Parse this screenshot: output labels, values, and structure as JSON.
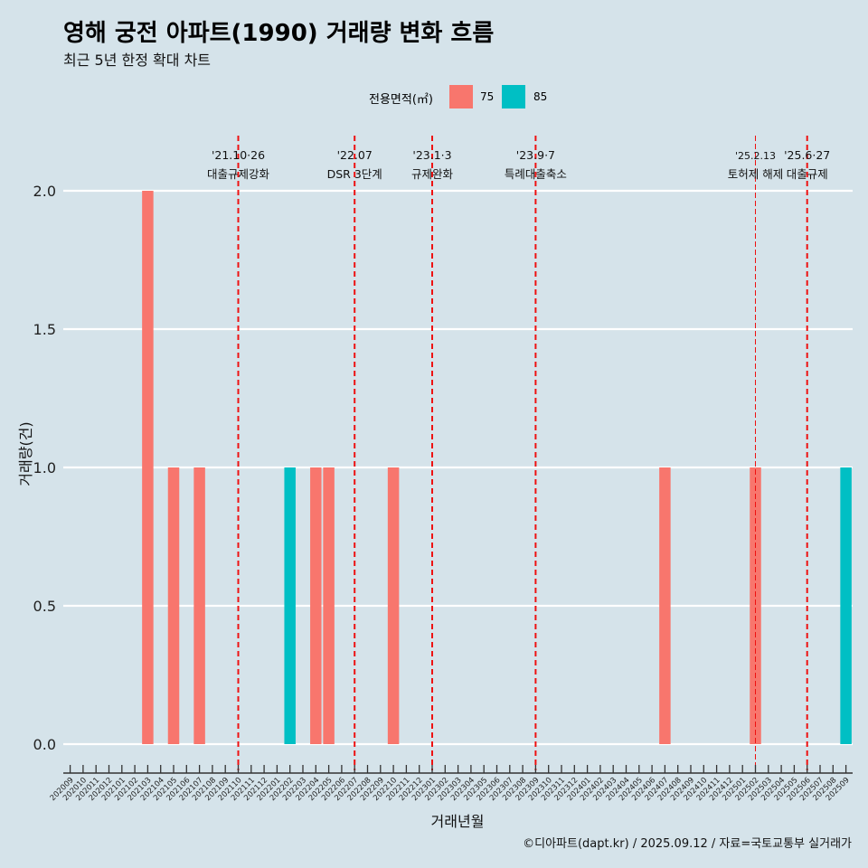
{
  "header": {
    "title": "영해 궁전 아파트(1990) 거래량 변화 흐름",
    "subtitle": "최근 5년 한정 확대 차트"
  },
  "legend": {
    "title": "전용면적(㎡)",
    "items": [
      {
        "label": "75",
        "color": "#f8766d"
      },
      {
        "label": "85",
        "color": "#00bfc4"
      }
    ]
  },
  "caption": "©디아파트(dapt.kr) / 2025.09.12 / 자료=국토교통부 실거래가",
  "chart_data": {
    "type": "bar",
    "xlabel": "거래년월",
    "ylabel": "거래량(건)",
    "ylim": [
      0,
      2
    ],
    "yticks": [
      "0.0",
      "0.5",
      "1.0",
      "1.5",
      "2.0"
    ],
    "categories": [
      "202009",
      "202010",
      "202011",
      "202012",
      "202101",
      "202102",
      "202103",
      "202104",
      "202105",
      "202106",
      "202107",
      "202108",
      "202109",
      "202110",
      "202111",
      "202112",
      "202201",
      "202202",
      "202203",
      "202204",
      "202205",
      "202206",
      "202207",
      "202208",
      "202209",
      "202210",
      "202211",
      "202212",
      "202301",
      "202302",
      "202303",
      "202304",
      "202305",
      "202306",
      "202307",
      "202308",
      "202309",
      "202310",
      "202311",
      "202312",
      "202401",
      "202402",
      "202403",
      "202404",
      "202405",
      "202406",
      "202407",
      "202408",
      "202409",
      "202410",
      "202411",
      "202412",
      "202501",
      "202502",
      "202503",
      "202504",
      "202505",
      "202506",
      "202507",
      "202508",
      "202509"
    ],
    "series": [
      {
        "name": "75",
        "color": "#f8766d",
        "points": [
          [
            "202103",
            2
          ],
          [
            "202105",
            1
          ],
          [
            "202107",
            1
          ],
          [
            "202204",
            1
          ],
          [
            "202205",
            1
          ],
          [
            "202210",
            1
          ],
          [
            "202407",
            1
          ],
          [
            "202502",
            1
          ]
        ]
      },
      {
        "name": "85",
        "color": "#00bfc4",
        "points": [
          [
            "202202",
            1
          ],
          [
            "202509",
            1
          ]
        ]
      }
    ],
    "annotations": [
      {
        "x": "202110",
        "date": "'21.10·26",
        "label": "대출규제강화"
      },
      {
        "x": "202207",
        "date": "'22.07",
        "label": "DSR 3단계"
      },
      {
        "x": "202301",
        "date": "'23.1·3",
        "label": "규제완화"
      },
      {
        "x": "202309",
        "date": "'23.9·7",
        "label": "특례대출축소"
      },
      {
        "x": "202502",
        "date": "'25.2.13",
        "label": "토허제 해제"
      },
      {
        "x": "202506",
        "date": "'25.6·27",
        "label": "대출규제"
      }
    ],
    "grid": true,
    "legend_position": "top"
  }
}
